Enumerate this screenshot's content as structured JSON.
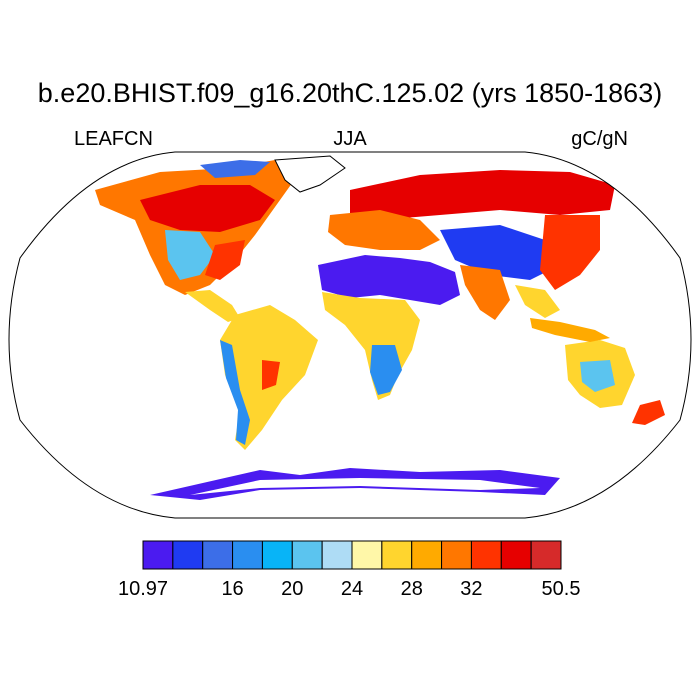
{
  "title": "b.e20.BHIST.f09_g16.20thC.125.02 (yrs 1850-1863)",
  "left_label": "LEAFCN",
  "center_label": "JJA",
  "right_label": "gC/gN",
  "projection": "robinson",
  "colorbar": {
    "colors": [
      "#4b1bf0",
      "#1f3bf2",
      "#3c6ee8",
      "#2a8ef0",
      "#08b4f7",
      "#5bc4ef",
      "#aedcf5",
      "#fff7a8",
      "#ffd52e",
      "#ffaa00",
      "#ff7700",
      "#ff3300",
      "#e60000",
      "#d62a2a"
    ],
    "labels": [
      "10.97",
      "16",
      "20",
      "24",
      "28",
      "32",
      "50.5"
    ]
  },
  "colors": {
    "antarctica": "#4b1bf0",
    "ocean": "#ffffff",
    "outline": "#000000"
  }
}
